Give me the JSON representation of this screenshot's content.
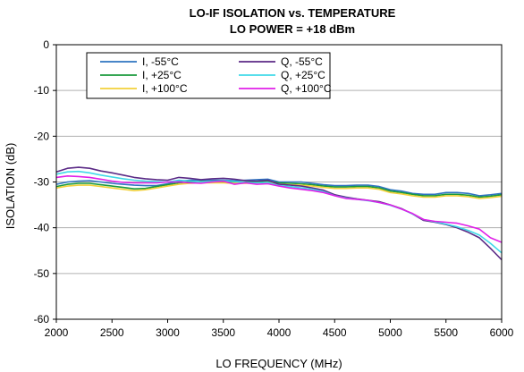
{
  "chart_data": {
    "type": "line",
    "title": "LO-IF ISOLATION vs. TEMPERATURE",
    "subtitle": "LO POWER = +18 dBm",
    "xlabel": "LO FREQUENCY (MHz)",
    "ylabel": "ISOLATION (dB)",
    "xlim": [
      2000,
      6000
    ],
    "ylim": [
      -60,
      0
    ],
    "xticks": [
      2000,
      2500,
      3000,
      3500,
      4000,
      4500,
      5000,
      5500,
      6000
    ],
    "yticks": [
      0,
      -10,
      -20,
      -30,
      -40,
      -50,
      -60
    ],
    "grid": "horizontal",
    "legend_placement": "top-left",
    "series": [
      {
        "name": "I, -55°C",
        "color": "#2e74c0",
        "points": [
          [
            2000,
            -30.5
          ],
          [
            2100,
            -30.0
          ],
          [
            2200,
            -29.8
          ],
          [
            2300,
            -29.7
          ],
          [
            2400,
            -30.0
          ],
          [
            2500,
            -30.3
          ],
          [
            2600,
            -30.5
          ],
          [
            2700,
            -30.7
          ],
          [
            2800,
            -30.8
          ],
          [
            2900,
            -30.8
          ],
          [
            3000,
            -30.4
          ],
          [
            3100,
            -29.8
          ],
          [
            3200,
            -29.6
          ],
          [
            3300,
            -29.6
          ],
          [
            3400,
            -29.6
          ],
          [
            3500,
            -29.6
          ],
          [
            3600,
            -29.7
          ],
          [
            3700,
            -29.6
          ],
          [
            3800,
            -29.5
          ],
          [
            3900,
            -29.4
          ],
          [
            4000,
            -30.0
          ],
          [
            4100,
            -30.0
          ],
          [
            4200,
            -30.0
          ],
          [
            4300,
            -30.3
          ],
          [
            4400,
            -30.6
          ],
          [
            4500,
            -30.8
          ],
          [
            4600,
            -30.8
          ],
          [
            4700,
            -30.7
          ],
          [
            4800,
            -30.7
          ],
          [
            4900,
            -31.0
          ],
          [
            5000,
            -31.7
          ],
          [
            5100,
            -32.0
          ],
          [
            5200,
            -32.5
          ],
          [
            5300,
            -32.7
          ],
          [
            5400,
            -32.7
          ],
          [
            5500,
            -32.3
          ],
          [
            5600,
            -32.3
          ],
          [
            5700,
            -32.5
          ],
          [
            5800,
            -33.0
          ],
          [
            5900,
            -32.8
          ],
          [
            6000,
            -32.5
          ]
        ]
      },
      {
        "name": "I, +25°C",
        "color": "#1a9a3c",
        "points": [
          [
            2000,
            -31.0
          ],
          [
            2100,
            -30.5
          ],
          [
            2200,
            -30.3
          ],
          [
            2300,
            -30.3
          ],
          [
            2400,
            -30.6
          ],
          [
            2500,
            -30.9
          ],
          [
            2600,
            -31.2
          ],
          [
            2700,
            -31.5
          ],
          [
            2800,
            -31.4
          ],
          [
            2900,
            -31.0
          ],
          [
            3000,
            -30.6
          ],
          [
            3100,
            -30.2
          ],
          [
            3200,
            -30.0
          ],
          [
            3300,
            -29.9
          ],
          [
            3400,
            -29.9
          ],
          [
            3500,
            -29.9
          ],
          [
            3600,
            -30.0
          ],
          [
            3700,
            -30.0
          ],
          [
            3800,
            -29.9
          ],
          [
            3900,
            -29.8
          ],
          [
            4000,
            -30.2
          ],
          [
            4100,
            -30.3
          ],
          [
            4200,
            -30.4
          ],
          [
            4300,
            -30.6
          ],
          [
            4400,
            -30.9
          ],
          [
            4500,
            -31.1
          ],
          [
            4600,
            -31.1
          ],
          [
            4700,
            -31.0
          ],
          [
            4800,
            -31.0
          ],
          [
            4900,
            -31.3
          ],
          [
            5000,
            -32.0
          ],
          [
            5100,
            -32.3
          ],
          [
            5200,
            -32.7
          ],
          [
            5300,
            -33.0
          ],
          [
            5400,
            -33.0
          ],
          [
            5500,
            -32.7
          ],
          [
            5600,
            -32.7
          ],
          [
            5700,
            -32.9
          ],
          [
            5800,
            -33.3
          ],
          [
            5900,
            -33.1
          ],
          [
            6000,
            -32.8
          ]
        ]
      },
      {
        "name": "I, +100°C",
        "color": "#f2d13a",
        "points": [
          [
            2000,
            -31.3
          ],
          [
            2100,
            -30.9
          ],
          [
            2200,
            -30.7
          ],
          [
            2300,
            -30.7
          ],
          [
            2400,
            -31.0
          ],
          [
            2500,
            -31.3
          ],
          [
            2600,
            -31.6
          ],
          [
            2700,
            -31.9
          ],
          [
            2800,
            -31.7
          ],
          [
            2900,
            -31.3
          ],
          [
            3000,
            -30.9
          ],
          [
            3100,
            -30.5
          ],
          [
            3200,
            -30.3
          ],
          [
            3300,
            -30.2
          ],
          [
            3400,
            -30.2
          ],
          [
            3500,
            -30.2
          ],
          [
            3600,
            -30.3
          ],
          [
            3700,
            -30.3
          ],
          [
            3800,
            -30.2
          ],
          [
            3900,
            -30.1
          ],
          [
            4000,
            -30.5
          ],
          [
            4100,
            -30.6
          ],
          [
            4200,
            -30.7
          ],
          [
            4300,
            -30.9
          ],
          [
            4400,
            -31.2
          ],
          [
            4500,
            -31.4
          ],
          [
            4600,
            -31.4
          ],
          [
            4700,
            -31.3
          ],
          [
            4800,
            -31.3
          ],
          [
            4900,
            -31.6
          ],
          [
            5000,
            -32.3
          ],
          [
            5100,
            -32.6
          ],
          [
            5200,
            -33.0
          ],
          [
            5300,
            -33.3
          ],
          [
            5400,
            -33.3
          ],
          [
            5500,
            -33.0
          ],
          [
            5600,
            -33.0
          ],
          [
            5700,
            -33.2
          ],
          [
            5800,
            -33.6
          ],
          [
            5900,
            -33.4
          ],
          [
            6000,
            -33.1
          ]
        ]
      },
      {
        "name": "Q, -55°C",
        "color": "#5b2a86",
        "points": [
          [
            2000,
            -27.8
          ],
          [
            2100,
            -27.0
          ],
          [
            2200,
            -26.8
          ],
          [
            2300,
            -27.0
          ],
          [
            2400,
            -27.6
          ],
          [
            2500,
            -28.0
          ],
          [
            2600,
            -28.5
          ],
          [
            2700,
            -29.0
          ],
          [
            2800,
            -29.3
          ],
          [
            2900,
            -29.5
          ],
          [
            3000,
            -29.6
          ],
          [
            3100,
            -29.0
          ],
          [
            3200,
            -29.2
          ],
          [
            3300,
            -29.5
          ],
          [
            3400,
            -29.3
          ],
          [
            3500,
            -29.2
          ],
          [
            3600,
            -29.4
          ],
          [
            3700,
            -29.7
          ],
          [
            3800,
            -29.8
          ],
          [
            3900,
            -29.6
          ],
          [
            4000,
            -30.5
          ],
          [
            4100,
            -30.7
          ],
          [
            4200,
            -30.9
          ],
          [
            4300,
            -31.3
          ],
          [
            4400,
            -31.8
          ],
          [
            4500,
            -32.8
          ],
          [
            4600,
            -33.3
          ],
          [
            4700,
            -33.7
          ],
          [
            4800,
            -34.0
          ],
          [
            4900,
            -34.3
          ],
          [
            5000,
            -35.0
          ],
          [
            5100,
            -35.8
          ],
          [
            5200,
            -37.0
          ],
          [
            5300,
            -38.4
          ],
          [
            5400,
            -38.8
          ],
          [
            5500,
            -39.3
          ],
          [
            5600,
            -40.0
          ],
          [
            5700,
            -41.0
          ],
          [
            5800,
            -42.2
          ],
          [
            5900,
            -44.5
          ],
          [
            6000,
            -47.0
          ]
        ]
      },
      {
        "name": "Q, +25°C",
        "color": "#40d9e8",
        "points": [
          [
            2000,
            -28.3
          ],
          [
            2100,
            -27.8
          ],
          [
            2200,
            -27.7
          ],
          [
            2300,
            -28.0
          ],
          [
            2400,
            -28.5
          ],
          [
            2500,
            -28.9
          ],
          [
            2600,
            -29.3
          ],
          [
            2700,
            -29.6
          ],
          [
            2800,
            -29.8
          ],
          [
            2900,
            -29.9
          ],
          [
            3000,
            -30.0
          ],
          [
            3100,
            -29.6
          ],
          [
            3200,
            -29.8
          ],
          [
            3300,
            -30.0
          ],
          [
            3400,
            -29.9
          ],
          [
            3500,
            -29.7
          ],
          [
            3600,
            -29.9
          ],
          [
            3700,
            -30.1
          ],
          [
            3800,
            -30.2
          ],
          [
            3900,
            -30.1
          ],
          [
            4000,
            -30.8
          ],
          [
            4100,
            -31.0
          ],
          [
            4200,
            -31.3
          ],
          [
            4300,
            -31.6
          ],
          [
            4400,
            -32.1
          ],
          [
            4500,
            -33.0
          ],
          [
            4600,
            -33.5
          ],
          [
            4700,
            -33.8
          ],
          [
            4800,
            -34.1
          ],
          [
            4900,
            -34.5
          ],
          [
            5000,
            -35.1
          ],
          [
            5100,
            -35.9
          ],
          [
            5200,
            -37.0
          ],
          [
            5300,
            -38.2
          ],
          [
            5400,
            -38.7
          ],
          [
            5500,
            -39.2
          ],
          [
            5600,
            -39.8
          ],
          [
            5700,
            -40.6
          ],
          [
            5800,
            -41.6
          ],
          [
            5900,
            -43.4
          ],
          [
            6000,
            -45.5
          ]
        ]
      },
      {
        "name": "Q, +100°C",
        "color": "#e020e8",
        "points": [
          [
            2000,
            -29.0
          ],
          [
            2100,
            -28.7
          ],
          [
            2200,
            -28.8
          ],
          [
            2300,
            -29.0
          ],
          [
            2400,
            -29.4
          ],
          [
            2500,
            -29.8
          ],
          [
            2600,
            -30.1
          ],
          [
            2700,
            -30.2
          ],
          [
            2800,
            -30.2
          ],
          [
            2900,
            -30.2
          ],
          [
            3000,
            -30.0
          ],
          [
            3100,
            -30.0
          ],
          [
            3200,
            -30.2
          ],
          [
            3300,
            -30.3
          ],
          [
            3400,
            -30.0
          ],
          [
            3500,
            -29.8
          ],
          [
            3600,
            -30.5
          ],
          [
            3700,
            -30.2
          ],
          [
            3800,
            -30.5
          ],
          [
            3900,
            -30.4
          ],
          [
            4000,
            -30.9
          ],
          [
            4100,
            -31.3
          ],
          [
            4200,
            -31.6
          ],
          [
            4300,
            -31.9
          ],
          [
            4400,
            -32.3
          ],
          [
            4500,
            -33.0
          ],
          [
            4600,
            -33.6
          ],
          [
            4700,
            -33.8
          ],
          [
            4800,
            -34.0
          ],
          [
            4900,
            -34.5
          ],
          [
            5000,
            -35.0
          ],
          [
            5100,
            -35.9
          ],
          [
            5200,
            -36.9
          ],
          [
            5300,
            -38.2
          ],
          [
            5400,
            -38.6
          ],
          [
            5500,
            -38.8
          ],
          [
            5600,
            -39.0
          ],
          [
            5700,
            -39.6
          ],
          [
            5800,
            -40.3
          ],
          [
            5900,
            -42.2
          ],
          [
            6000,
            -43.2
          ]
        ]
      }
    ]
  }
}
